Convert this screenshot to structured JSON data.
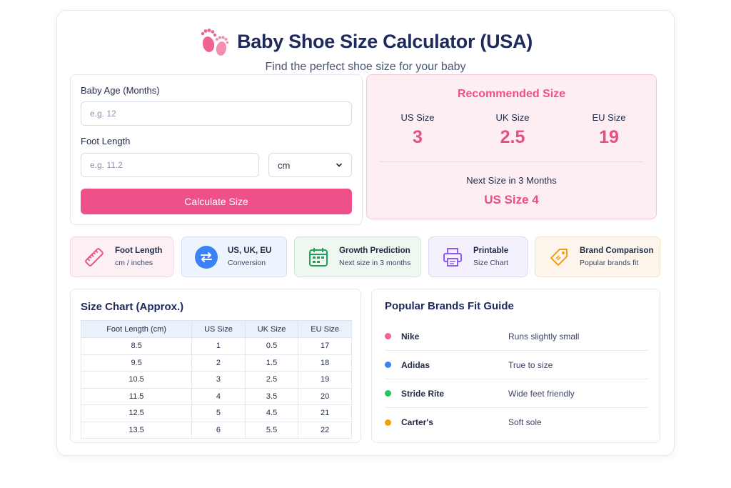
{
  "header": {
    "title": "Baby Shoe Size Calculator (USA)",
    "subtitle": "Find the perfect shoe size for your baby",
    "icon": "baby-feet-icon"
  },
  "form": {
    "age_label": "Baby Age (Months)",
    "age_placeholder": "e.g. 12",
    "age_value": "",
    "foot_label": "Foot Length",
    "foot_placeholder": "e.g. 11.2",
    "foot_value": "",
    "unit_selected": "cm",
    "calculate_label": "Calculate Size"
  },
  "result": {
    "title": "Recommended Size",
    "sizes": [
      {
        "label": "US Size",
        "value": "3"
      },
      {
        "label": "UK Size",
        "value": "2.5"
      },
      {
        "label": "EU Size",
        "value": "19"
      }
    ],
    "next_label": "Next Size in 3 Months",
    "next_value": "US Size 4"
  },
  "features": [
    {
      "title": "Foot Length",
      "sub": "cm / inches",
      "icon": "ruler-icon",
      "color": "#f0508a"
    },
    {
      "title": "US, UK, EU",
      "sub": "Conversion",
      "icon": "convert-arrows-icon",
      "color": "#3b82f6"
    },
    {
      "title": "Growth Prediction",
      "sub": "Next size in 3 months",
      "icon": "calendar-icon",
      "color": "#22a05a"
    },
    {
      "title": "Printable",
      "sub": "Size Chart",
      "icon": "printer-icon",
      "color": "#8b5cf6"
    },
    {
      "title": "Brand Comparison",
      "sub": "Popular brands fit",
      "icon": "tag-icon",
      "color": "#f59e0b"
    }
  ],
  "size_chart": {
    "title": "Size Chart (Approx.)",
    "headers": [
      "Foot Length (cm)",
      "US Size",
      "UK Size",
      "EU Size"
    ],
    "rows": [
      [
        "8.5",
        "1",
        "0.5",
        "17"
      ],
      [
        "9.5",
        "2",
        "1.5",
        "18"
      ],
      [
        "10.5",
        "3",
        "2.5",
        "19"
      ],
      [
        "11.5",
        "4",
        "3.5",
        "20"
      ],
      [
        "12.5",
        "5",
        "4.5",
        "21"
      ],
      [
        "13.5",
        "6",
        "5.5",
        "22"
      ]
    ]
  },
  "brands": {
    "title": "Popular Brands Fit Guide",
    "items": [
      {
        "name": "Nike",
        "fit": "Runs slightly small",
        "color": "#f06292"
      },
      {
        "name": "Adidas",
        "fit": "True to size",
        "color": "#3b82f6"
      },
      {
        "name": "Stride Rite",
        "fit": "Wide feet friendly",
        "color": "#22c55e"
      },
      {
        "name": "Carter's",
        "fit": "Soft sole",
        "color": "#f59e0b"
      }
    ]
  }
}
